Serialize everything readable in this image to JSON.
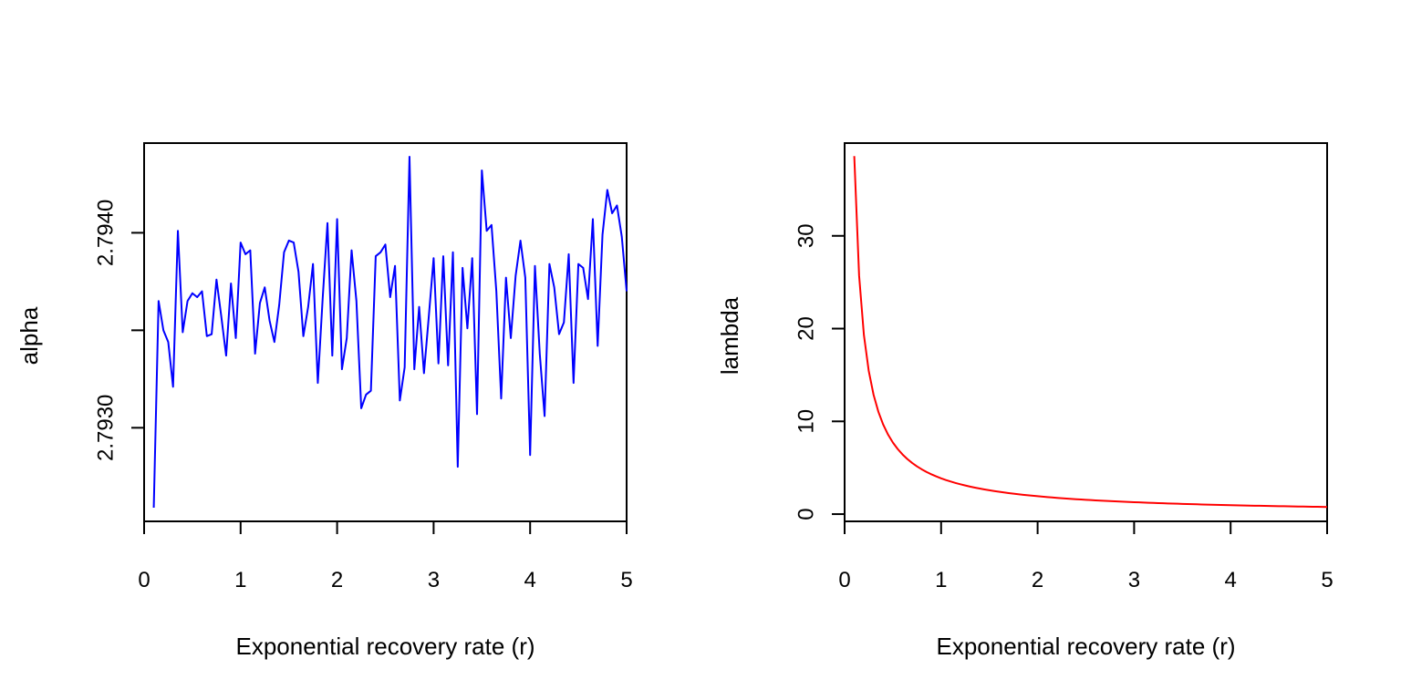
{
  "chart_data": [
    {
      "type": "line",
      "xlabel": "Exponential recovery rate (r)",
      "ylabel": "alpha",
      "xlim": [
        0,
        5
      ],
      "ylim": [
        2.79252,
        2.79446
      ],
      "x_ticks": [
        0,
        1,
        2,
        3,
        4,
        5
      ],
      "x_tick_labels": [
        "0",
        "1",
        "2",
        "3",
        "4",
        "5"
      ],
      "y_ticks": [
        2.793,
        2.7935,
        2.794
      ],
      "y_tick_labels": [
        "2.7930",
        "",
        "2.7940"
      ],
      "grid": false,
      "series": [
        {
          "color": "#0000ff",
          "x": [
            0.1,
            0.15,
            0.2,
            0.25,
            0.3,
            0.35,
            0.4,
            0.45,
            0.5,
            0.55,
            0.6,
            0.65,
            0.7,
            0.75,
            0.8,
            0.85,
            0.9,
            0.95,
            1.0,
            1.05,
            1.1,
            1.15,
            1.2,
            1.25,
            1.3,
            1.35,
            1.4,
            1.45,
            1.5,
            1.55,
            1.6,
            1.65,
            1.7,
            1.75,
            1.8,
            1.85,
            1.9,
            1.95,
            2.0,
            2.05,
            2.1,
            2.15,
            2.2,
            2.25,
            2.3,
            2.35,
            2.4,
            2.45,
            2.5,
            2.55,
            2.6,
            2.65,
            2.7,
            2.75,
            2.8,
            2.85,
            2.9,
            2.95,
            3.0,
            3.05,
            3.1,
            3.15,
            3.2,
            3.25,
            3.3,
            3.35,
            3.4,
            3.45,
            3.5,
            3.55,
            3.6,
            3.65,
            3.7,
            3.75,
            3.8,
            3.85,
            3.9,
            3.95,
            4.0,
            4.05,
            4.1,
            4.15,
            4.2,
            4.25,
            4.3,
            4.35,
            4.4,
            4.45,
            4.5,
            4.55,
            4.6,
            4.65,
            4.7,
            4.75,
            4.8,
            4.85,
            4.9,
            4.95,
            5.0
          ],
          "y": [
            2.79259,
            2.79365,
            2.7935,
            2.79344,
            2.79321,
            2.79401,
            2.79349,
            2.79365,
            2.79369,
            2.79367,
            2.7937,
            2.79347,
            2.79348,
            2.79376,
            2.79357,
            2.79337,
            2.79374,
            2.79346,
            2.79395,
            2.79389,
            2.79391,
            2.79338,
            2.79364,
            2.79372,
            2.79355,
            2.79344,
            2.79363,
            2.7939,
            2.79396,
            2.79395,
            2.7938,
            2.79347,
            2.79362,
            2.79384,
            2.79323,
            2.79366,
            2.79405,
            2.79337,
            2.79407,
            2.7933,
            2.79346,
            2.79391,
            2.79365,
            2.7931,
            2.79317,
            2.79319,
            2.79388,
            2.7939,
            2.79394,
            2.79367,
            2.79383,
            2.79314,
            2.79331,
            2.79439,
            2.7933,
            2.79362,
            2.79328,
            2.79357,
            2.79387,
            2.79333,
            2.79388,
            2.79332,
            2.7939,
            2.7928,
            2.79382,
            2.79351,
            2.79387,
            2.79307,
            2.79432,
            2.79401,
            2.79404,
            2.7937,
            2.79315,
            2.79377,
            2.79346,
            2.79378,
            2.79396,
            2.79377,
            2.79286,
            2.79383,
            2.79338,
            2.79306,
            2.79384,
            2.79372,
            2.79348,
            2.79354,
            2.79389,
            2.79323,
            2.79384,
            2.79382,
            2.79366,
            2.79407,
            2.79342,
            2.79399,
            2.79422,
            2.7941,
            2.79414,
            2.79398,
            2.7937
          ]
        }
      ]
    },
    {
      "type": "line",
      "xlabel": "Exponential recovery rate (r)",
      "ylabel": "lambda",
      "xlim": [
        0,
        5
      ],
      "ylim": [
        -0.78,
        40.0
      ],
      "x_ticks": [
        0,
        1,
        2,
        3,
        4,
        5
      ],
      "x_tick_labels": [
        "0",
        "1",
        "2",
        "3",
        "4",
        "5"
      ],
      "y_ticks": [
        0,
        10,
        20,
        30
      ],
      "y_tick_labels": [
        "0",
        "10",
        "20",
        "30"
      ],
      "grid": false,
      "series": [
        {
          "color": "#ff0000",
          "formula": "3.86 / r",
          "x_range": [
            0.1,
            5.0
          ],
          "x_step": 0.05
        }
      ]
    }
  ]
}
